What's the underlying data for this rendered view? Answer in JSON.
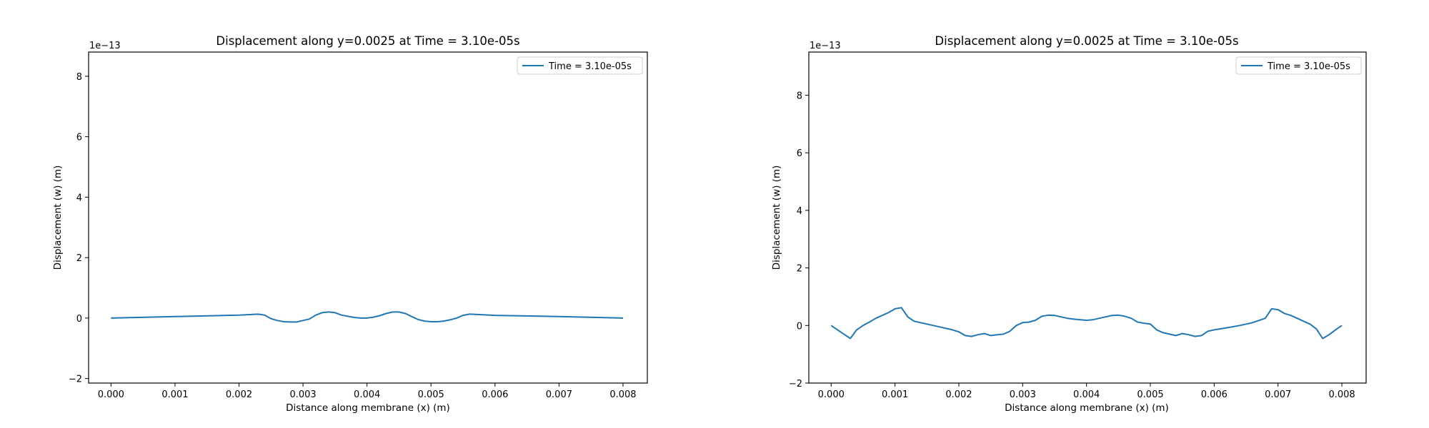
{
  "chart_data": [
    {
      "type": "line",
      "title": "Displacement along y=0.0025 at Time = 3.10e-05s",
      "xlabel": "Distance along membrane (x) (m)",
      "ylabel": "Displacement (w) (m)",
      "y_scale_label": "1e−13",
      "xlim": [
        -0.00035,
        0.00838
      ],
      "ylim": [
        -2.15,
        8.8
      ],
      "xticks": [
        0.0,
        0.001,
        0.002,
        0.003,
        0.004,
        0.005,
        0.006,
        0.007,
        0.008
      ],
      "xtick_labels": [
        "0.000",
        "0.001",
        "0.002",
        "0.003",
        "0.004",
        "0.005",
        "0.006",
        "0.007",
        "0.008"
      ],
      "yticks": [
        -2,
        0,
        2,
        4,
        6,
        8
      ],
      "ytick_labels": [
        "−2",
        "0",
        "2",
        "4",
        "6",
        "8"
      ],
      "legend_position": "top-right",
      "color": "#1f77b4",
      "series": [
        {
          "name": "Time = 3.10e-05s",
          "x": [
            0.0,
            0.001,
            0.002,
            0.0023,
            0.0024,
            0.0025,
            0.0026,
            0.0027,
            0.0028,
            0.0029,
            0.003,
            0.0031,
            0.0032,
            0.0033,
            0.0034,
            0.0035,
            0.0036,
            0.0037,
            0.0038,
            0.0039,
            0.004,
            0.0041,
            0.0042,
            0.0043,
            0.0044,
            0.0045,
            0.0046,
            0.0047,
            0.0048,
            0.0049,
            0.005,
            0.0051,
            0.0052,
            0.0053,
            0.0054,
            0.0055,
            0.0056,
            0.0057,
            0.006,
            0.007,
            0.008
          ],
          "y": [
            0.0,
            0.05,
            0.1,
            0.13,
            0.1,
            -0.02,
            -0.08,
            -0.12,
            -0.13,
            -0.13,
            -0.08,
            -0.03,
            0.1,
            0.18,
            0.2,
            0.18,
            0.1,
            0.06,
            0.02,
            0.0,
            0.0,
            0.03,
            0.08,
            0.15,
            0.2,
            0.2,
            0.15,
            0.05,
            -0.05,
            -0.1,
            -0.12,
            -0.12,
            -0.1,
            -0.06,
            0.0,
            0.09,
            0.13,
            0.12,
            0.09,
            0.05,
            0.0
          ]
        }
      ]
    },
    {
      "type": "line",
      "title": "Displacement along y=0.0025 at Time = 3.10e-05s",
      "xlabel": "Distance along membrane (x) (m)",
      "ylabel": "Displacement (w) (m)",
      "y_scale_label": "1e−13",
      "xlim": [
        -0.00035,
        0.00838
      ],
      "ylim": [
        -2.0,
        9.5
      ],
      "xticks": [
        0.0,
        0.001,
        0.002,
        0.003,
        0.004,
        0.005,
        0.006,
        0.007,
        0.008
      ],
      "xtick_labels": [
        "0.000",
        "0.001",
        "0.002",
        "0.003",
        "0.004",
        "0.005",
        "0.006",
        "0.007",
        "0.008"
      ],
      "yticks": [
        -2,
        0,
        2,
        4,
        6,
        8
      ],
      "ytick_labels": [
        "−2",
        "0",
        "2",
        "4",
        "6",
        "8"
      ],
      "legend_position": "top-right",
      "color": "#1f77b4",
      "series": [
        {
          "name": "Time = 3.10e-05s",
          "x": [
            0.0,
            0.0001,
            0.0002,
            0.0003,
            0.0004,
            0.0005,
            0.0006,
            0.0007,
            0.0008,
            0.0009,
            0.001,
            0.0011,
            0.0012,
            0.0013,
            0.0015,
            0.0017,
            0.0019,
            0.002,
            0.0021,
            0.0022,
            0.0023,
            0.0024,
            0.0025,
            0.0026,
            0.0027,
            0.0028,
            0.0029,
            0.003,
            0.0031,
            0.0032,
            0.0033,
            0.0034,
            0.0035,
            0.0036,
            0.0037,
            0.0038,
            0.0039,
            0.004,
            0.0041,
            0.0042,
            0.0043,
            0.0044,
            0.0045,
            0.0046,
            0.0047,
            0.0048,
            0.0049,
            0.005,
            0.0051,
            0.0052,
            0.0053,
            0.0054,
            0.0055,
            0.0056,
            0.0057,
            0.0058,
            0.0059,
            0.006,
            0.0062,
            0.0064,
            0.0066,
            0.0068,
            0.0069,
            0.007,
            0.0071,
            0.0072,
            0.0073,
            0.0074,
            0.0075,
            0.0076,
            0.0077,
            0.0078,
            0.0079,
            0.008
          ],
          "y": [
            0.0,
            -0.15,
            -0.3,
            -0.45,
            -0.15,
            0.0,
            0.12,
            0.25,
            0.35,
            0.45,
            0.58,
            0.62,
            0.3,
            0.15,
            0.05,
            -0.05,
            -0.15,
            -0.22,
            -0.35,
            -0.38,
            -0.32,
            -0.28,
            -0.35,
            -0.32,
            -0.3,
            -0.2,
            0.0,
            0.1,
            0.12,
            0.18,
            0.32,
            0.36,
            0.35,
            0.3,
            0.25,
            0.22,
            0.2,
            0.18,
            0.2,
            0.25,
            0.3,
            0.35,
            0.36,
            0.32,
            0.25,
            0.12,
            0.08,
            0.05,
            -0.15,
            -0.25,
            -0.3,
            -0.35,
            -0.28,
            -0.32,
            -0.38,
            -0.35,
            -0.2,
            -0.15,
            -0.08,
            0.0,
            0.1,
            0.25,
            0.58,
            0.55,
            0.42,
            0.35,
            0.25,
            0.15,
            0.05,
            -0.12,
            -0.45,
            -0.32,
            -0.15,
            0.0
          ]
        }
      ]
    }
  ]
}
